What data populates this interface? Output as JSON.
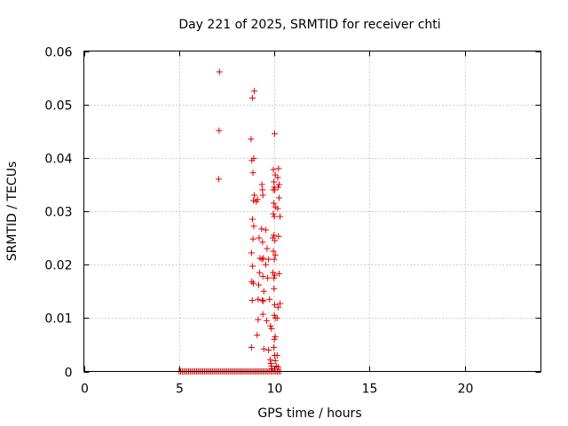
{
  "chart_data": {
    "type": "scatter",
    "title": "Day 221 of 2025, SRMTID for receiver chti",
    "xlabel": "GPS time / hours",
    "ylabel": "SRMTID / TECUs",
    "xlim": [
      0,
      24
    ],
    "ylim": [
      0,
      0.06
    ],
    "xticks": [
      0,
      5,
      10,
      15,
      20
    ],
    "xtick_labels": [
      "0",
      "5",
      "10",
      "15",
      "20"
    ],
    "yticks": [
      0,
      0.01,
      0.02,
      0.03,
      0.04,
      0.05,
      0.06
    ],
    "ytick_labels": [
      "0",
      "0.01",
      "0.02",
      "0.03",
      "0.04",
      "0.05",
      "0.06"
    ],
    "grid": true,
    "marker": "+",
    "color": "#e00000",
    "baseline_zero": {
      "x_start": 5.0,
      "x_end": 10.4,
      "step": 0.0833,
      "y": 0
    },
    "series": [
      {
        "name": "SRMTID",
        "points": [
          [
            7.12,
            0.0561
          ],
          [
            7.1,
            0.0451
          ],
          [
            7.08,
            0.036
          ],
          [
            8.85,
            0.0512
          ],
          [
            8.95,
            0.0525
          ],
          [
            8.78,
            0.0435
          ],
          [
            8.82,
            0.0395
          ],
          [
            8.92,
            0.0399
          ],
          [
            8.88,
            0.0372
          ],
          [
            8.95,
            0.033
          ],
          [
            8.9,
            0.032
          ],
          [
            9.05,
            0.0318
          ],
          [
            9.12,
            0.0322
          ],
          [
            8.85,
            0.0285
          ],
          [
            8.92,
            0.0272
          ],
          [
            8.88,
            0.0248
          ],
          [
            8.8,
            0.0222
          ],
          [
            8.86,
            0.0197
          ],
          [
            8.82,
            0.0168
          ],
          [
            8.9,
            0.0165
          ],
          [
            8.84,
            0.0133
          ],
          [
            8.8,
            0.0045
          ],
          [
            9.1,
            0.0068
          ],
          [
            9.15,
            0.0097
          ],
          [
            9.2,
            0.025
          ],
          [
            9.25,
            0.0212
          ],
          [
            9.22,
            0.0185
          ],
          [
            9.18,
            0.0162
          ],
          [
            9.15,
            0.0135
          ],
          [
            9.35,
            0.035
          ],
          [
            9.38,
            0.034
          ],
          [
            9.4,
            0.033
          ],
          [
            9.33,
            0.0267
          ],
          [
            9.38,
            0.0242
          ],
          [
            9.42,
            0.0212
          ],
          [
            9.35,
            0.021
          ],
          [
            9.4,
            0.0178
          ],
          [
            9.45,
            0.015
          ],
          [
            9.37,
            0.0133
          ],
          [
            9.43,
            0.0132
          ],
          [
            9.4,
            0.0107
          ],
          [
            9.45,
            0.0042
          ],
          [
            9.6,
            0.0095
          ],
          [
            9.7,
            0.004
          ],
          [
            9.55,
            0.0265
          ],
          [
            9.62,
            0.023
          ],
          [
            9.55,
            0.02
          ],
          [
            9.7,
            0.021
          ],
          [
            9.65,
            0.0175
          ],
          [
            9.75,
            0.0135
          ],
          [
            9.8,
            0.0085
          ],
          [
            9.85,
            0.008
          ],
          [
            9.78,
            0.0022
          ],
          [
            9.82,
            0.0015
          ],
          [
            9.88,
            0.0005
          ],
          [
            9.85,
            0.001
          ],
          [
            10.02,
            0.0445
          ],
          [
            9.95,
            0.0378
          ],
          [
            10.05,
            0.0368
          ],
          [
            9.98,
            0.0355
          ],
          [
            9.95,
            0.034
          ],
          [
            10.0,
            0.0345
          ],
          [
            10.03,
            0.034
          ],
          [
            9.97,
            0.0315
          ],
          [
            10.05,
            0.0308
          ],
          [
            9.95,
            0.0295
          ],
          [
            10.0,
            0.029
          ],
          [
            9.92,
            0.025
          ],
          [
            9.98,
            0.0255
          ],
          [
            10.03,
            0.0245
          ],
          [
            9.95,
            0.0225
          ],
          [
            10.05,
            0.0218
          ],
          [
            10.0,
            0.021
          ],
          [
            9.93,
            0.0185
          ],
          [
            9.98,
            0.0175
          ],
          [
            10.02,
            0.018
          ],
          [
            9.98,
            0.0155
          ],
          [
            10.02,
            0.0125
          ],
          [
            10.05,
            0.01
          ],
          [
            10.0,
            0.0105
          ],
          [
            10.05,
            0.0065
          ],
          [
            10.0,
            0.006
          ],
          [
            9.97,
            0.0045
          ],
          [
            10.02,
            0.003
          ],
          [
            10.05,
            0.002
          ],
          [
            10.1,
            0.001
          ],
          [
            10.22,
            0.038
          ],
          [
            10.18,
            0.0363
          ],
          [
            10.25,
            0.035
          ],
          [
            10.2,
            0.0345
          ],
          [
            10.25,
            0.0325
          ],
          [
            10.18,
            0.0305
          ],
          [
            10.3,
            0.029
          ],
          [
            10.22,
            0.0253
          ],
          [
            10.25,
            0.0183
          ],
          [
            10.2,
            0.012
          ],
          [
            10.3,
            0.0127
          ],
          [
            10.15,
            0.01
          ],
          [
            10.15,
            0.003
          ],
          [
            10.2,
            0.0008
          ]
        ]
      }
    ]
  }
}
